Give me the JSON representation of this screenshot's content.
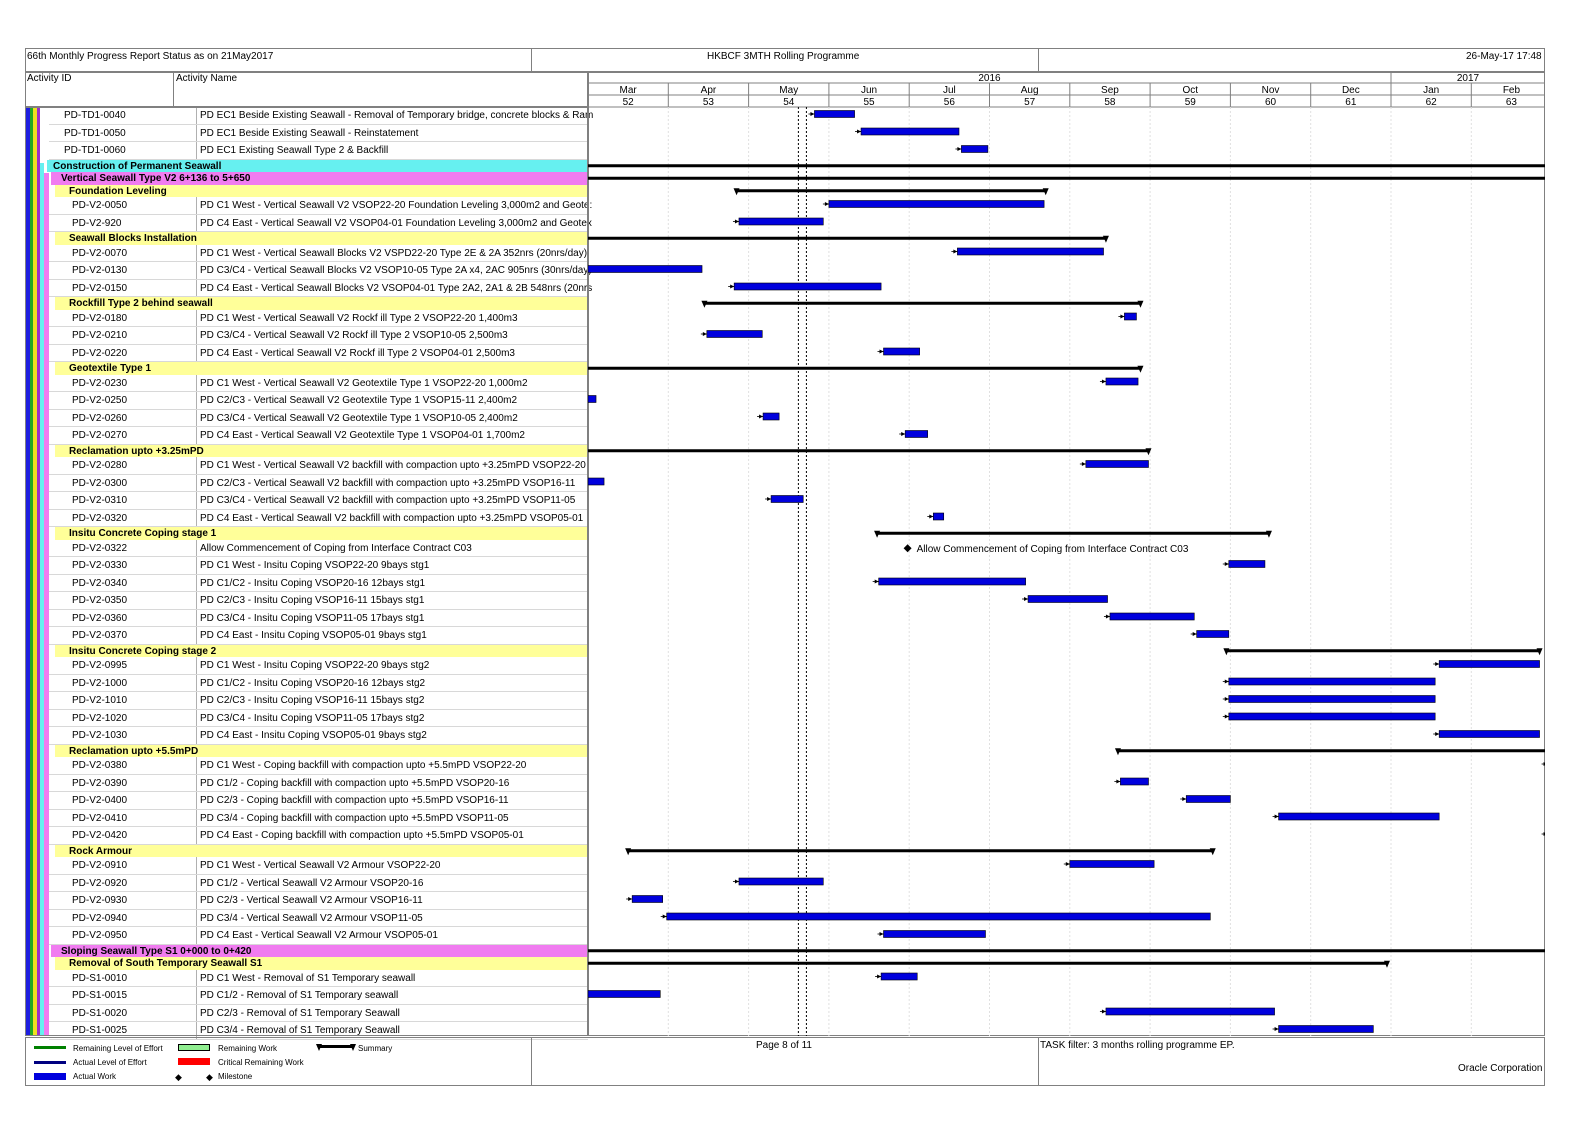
{
  "header": {
    "left": "66th Monthly Progress Report Status as on 21May2017",
    "center": "HKBCF 3MTH Rolling Programme",
    "right": "26-May-17 17:48"
  },
  "columns": {
    "activity_id": "Activity ID",
    "activity_name": "Activity Name"
  },
  "timescale": {
    "years": [
      {
        "label": "2016",
        "start": 0,
        "end": 10
      },
      {
        "label": "2017",
        "start": 10,
        "end": 12
      }
    ],
    "months": [
      "Mar",
      "Apr",
      "May",
      "Jun",
      "Jul",
      "Aug",
      "Sep",
      "Oct",
      "Nov",
      "Dec",
      "Jan",
      "Feb"
    ],
    "weeks": [
      "52",
      "53",
      "54",
      "55",
      "56",
      "57",
      "58",
      "59",
      "60",
      "61",
      "62",
      "63"
    ]
  },
  "colors": {
    "bar": "#0000dd",
    "summary": "#000000",
    "wbs_cyan": "#66f0f0",
    "wbs_magenta": "#f07cf0",
    "wbs_yellow": "#ffff99",
    "legend_remaining_loe": "#008000",
    "legend_actual_loe": "#000080",
    "legend_actual_work": "#0000dd",
    "legend_remaining_work": "#90ee90",
    "legend_critical": "#ff0000"
  },
  "chart_data": {
    "type": "gantt",
    "unit": "months from 1-Mar-2016",
    "data_date": 2.72,
    "rows": [
      {
        "kind": "act",
        "id": "PD-TD1-0040",
        "name": "PD EC1 Beside Existing Seawall - Removal of Temporary bridge, concrete blocks & Ram",
        "start": 2.82,
        "finish": 3.32
      },
      {
        "kind": "act",
        "id": "PD-TD1-0050",
        "name": "PD EC1 Beside Existing Seawall - Reinstatement",
        "start": 3.4,
        "finish": 4.62
      },
      {
        "kind": "act",
        "id": "PD-TD1-0060",
        "name": "PD EC1 Existing Seawall Type 2 & Backfill",
        "start": 4.65,
        "finish": 4.98
      },
      {
        "kind": "wbs",
        "level": 1,
        "name": "Construction of Permanent Seawall",
        "start": 0,
        "finish": 12
      },
      {
        "kind": "wbs",
        "level": 2,
        "name": "Vertical Seawall Type V2 6+136 to 5+650",
        "start": 0,
        "finish": 12
      },
      {
        "kind": "wbs",
        "level": 3,
        "name": "Foundation Leveling",
        "start": 1.85,
        "finish": 5.7
      },
      {
        "kind": "act",
        "id": "PD-V2-0050",
        "name": "PD C1 West - Vertical Seawall V2 VSOP22-20 Foundation Leveling 3,000m2 and Geote:",
        "start": 3.0,
        "finish": 5.68
      },
      {
        "kind": "act",
        "id": "PD-V2-920",
        "name": "PD C4 East - Vertical Seawall V2 VSOP04-01 Foundation Leveling 3,000m2 and Geotex",
        "start": 1.88,
        "finish": 2.93
      },
      {
        "kind": "wbs",
        "level": 3,
        "name": "Seawall Blocks Installation",
        "start": 0,
        "finish": 6.45
      },
      {
        "kind": "act",
        "id": "PD-V2-0070",
        "name": "PD C1 West - Vertical Seawall Blocks V2 VSPD22-20 Type 2E & 2A 352nrs (20nrs/day)",
        "start": 4.6,
        "finish": 6.42
      },
      {
        "kind": "act",
        "id": "PD-V2-0130",
        "name": "PD C3/C4 - Vertical Seawall Blocks V2 VSOP10-05 Type 2A x4, 2AC 905nrs (30nrs/day)",
        "start": 0,
        "finish": 1.42
      },
      {
        "kind": "act",
        "id": "PD-V2-0150",
        "name": "PD C4 East - Vertical Seawall Blocks V2 VSOP04-01 Type 2A2, 2A1 & 2B 548nrs (20nrs",
        "start": 1.82,
        "finish": 3.65
      },
      {
        "kind": "wbs",
        "level": 3,
        "name": "Rockfill Type 2 behind seawall",
        "start": 1.45,
        "finish": 6.88
      },
      {
        "kind": "act",
        "id": "PD-V2-0180",
        "name": "PD C1 West - Vertical Seawall V2 Rockf ill Type 2 VSOP22-20 1,400m3",
        "start": 6.68,
        "finish": 6.83
      },
      {
        "kind": "act",
        "id": "PD-V2-0210",
        "name": "PD C3/C4 - Vertical Seawall V2 Rockf ill Type 2 VSOP10-05 2,500m3",
        "start": 1.48,
        "finish": 2.17
      },
      {
        "kind": "act",
        "id": "PD-V2-0220",
        "name": "PD C4 East - Vertical Seawall V2 Rockf ill Type 2 VSOP04-01 2,500m3",
        "start": 3.68,
        "finish": 4.13
      },
      {
        "kind": "wbs",
        "level": 3,
        "name": "Geotextile Type 1",
        "start": 0,
        "finish": 6.88
      },
      {
        "kind": "act",
        "id": "PD-V2-0230",
        "name": "PD C1 West - Vertical Seawall V2 Geotextile Type 1 VSOP22-20 1,000m2",
        "start": 6.45,
        "finish": 6.85
      },
      {
        "kind": "act",
        "id": "PD-V2-0250",
        "name": "PD C2/C3 - Vertical Seawall V2 Geotextile Type 1 VSOP15-11 2,400m2",
        "start": 0,
        "finish": 0.1
      },
      {
        "kind": "act",
        "id": "PD-V2-0260",
        "name": "PD C3/C4 - Vertical Seawall V2 Geotextile Type 1 VSOP10-05 2,400m2",
        "start": 2.18,
        "finish": 2.38
      },
      {
        "kind": "act",
        "id": "PD-V2-0270",
        "name": "PD C4 East - Vertical Seawall V2 Geotextile Type 1 VSOP04-01 1,700m2",
        "start": 3.95,
        "finish": 4.23
      },
      {
        "kind": "wbs",
        "level": 3,
        "name": "Reclamation upto +3.25mPD",
        "start": 0,
        "finish": 6.98
      },
      {
        "kind": "act",
        "id": "PD-V2-0280",
        "name": "PD C1 West - Vertical Seawall V2 backfill with compaction upto +3.25mPD VSOP22-20",
        "start": 6.2,
        "finish": 6.98
      },
      {
        "kind": "act",
        "id": "PD-V2-0300",
        "name": "PD C2/C3 - Vertical Seawall V2 backfill with compaction upto +3.25mPD VSOP16-11",
        "start": 0,
        "finish": 0.2
      },
      {
        "kind": "act",
        "id": "PD-V2-0310",
        "name": "PD C3/C4 - Vertical Seawall V2 backfill with compaction upto +3.25mPD VSOP11-05",
        "start": 2.28,
        "finish": 2.68
      },
      {
        "kind": "act",
        "id": "PD-V2-0320",
        "name": "PD C4 East - Vertical Seawall V2 backfill with compaction upto +3.25mPD VSOP05-01",
        "start": 4.3,
        "finish": 4.43
      },
      {
        "kind": "wbs",
        "level": 3,
        "name": "Insitu Concrete Coping stage 1",
        "start": 3.6,
        "finish": 8.48
      },
      {
        "kind": "act",
        "id": "PD-V2-0322",
        "name": "Allow Commencement of Coping from Interface Contract C03",
        "milestone": 3.98,
        "label": "Allow Commencement of Coping from Interface Contract C03"
      },
      {
        "kind": "act",
        "id": "PD-V2-0330",
        "name": "PD C1 West - Insitu Coping VSOP22-20 9bays stg1",
        "start": 7.98,
        "finish": 8.43
      },
      {
        "kind": "act",
        "id": "PD-V2-0340",
        "name": "PD C1/C2 - Insitu Coping VSOP20-16 12bays stg1",
        "start": 3.62,
        "finish": 5.45
      },
      {
        "kind": "act",
        "id": "PD-V2-0350",
        "name": "PD C2/C3 - Insitu Coping VSOP16-11 15bays stg1",
        "start": 5.48,
        "finish": 6.47
      },
      {
        "kind": "act",
        "id": "PD-V2-0360",
        "name": "PD C3/C4 - Insitu Coping VSOP11-05 17bays stg1",
        "start": 6.5,
        "finish": 7.55
      },
      {
        "kind": "act",
        "id": "PD-V2-0370",
        "name": "PD C4 East - Insitu Coping VSOP05-01 9bays stg1",
        "start": 7.58,
        "finish": 7.98
      },
      {
        "kind": "wbs",
        "level": 3,
        "name": "Insitu Concrete Coping stage 2",
        "start": 7.95,
        "finish": 11.85
      },
      {
        "kind": "act",
        "id": "PD-V2-0995",
        "name": "PD C1 West - Insitu Coping VSOP22-20 9bays stg2",
        "start": 10.6,
        "finish": 11.85
      },
      {
        "kind": "act",
        "id": "PD-V2-1000",
        "name": "PD C1/C2 - Insitu Coping VSOP20-16 12bays stg2",
        "start": 7.98,
        "finish": 10.55
      },
      {
        "kind": "act",
        "id": "PD-V2-1010",
        "name": "PD C2/C3 - Insitu Coping VSOP16-11 15bays stg2",
        "start": 7.98,
        "finish": 10.55
      },
      {
        "kind": "act",
        "id": "PD-V2-1020",
        "name": "PD C3/C4 - Insitu Coping VSOP11-05 17bays stg2",
        "start": 7.98,
        "finish": 10.55
      },
      {
        "kind": "act",
        "id": "PD-V2-1030",
        "name": "PD C4 East - Insitu Coping VSOP05-01 9bays stg2",
        "start": 10.6,
        "finish": 11.85
      },
      {
        "kind": "wbs",
        "level": 3,
        "name": "Reclamation upto +5.5mPD",
        "start": 6.6,
        "finish": 12
      },
      {
        "kind": "act",
        "id": "PD-V2-0380",
        "name": "PD C1 West - Coping backfill with compaction upto +5.5mPD VSOP22-20",
        "start": 11.95,
        "finish": 12
      },
      {
        "kind": "act",
        "id": "PD-V2-0390",
        "name": "PD C1/2 - Coping backfill with compaction upto +5.5mPD VSOP20-16",
        "start": 6.63,
        "finish": 6.98
      },
      {
        "kind": "act",
        "id": "PD-V2-0400",
        "name": "PD C2/3 - Coping backfill with compaction upto +5.5mPD VSOP16-11",
        "start": 7.45,
        "finish": 8.0
      },
      {
        "kind": "act",
        "id": "PD-V2-0410",
        "name": "PD C3/4 - Coping backfill with compaction upto +5.5mPD VSOP11-05",
        "start": 8.6,
        "finish": 10.6
      },
      {
        "kind": "act",
        "id": "PD-V2-0420",
        "name": "PD C4 East - Coping backfill with compaction upto +5.5mPD VSOP05-01",
        "start": 11.95,
        "finish": 12
      },
      {
        "kind": "wbs",
        "level": 3,
        "name": "Rock Armour",
        "start": 0.5,
        "finish": 7.78
      },
      {
        "kind": "act",
        "id": "PD-V2-0910",
        "name": "PD C1 West - Vertical Seawall V2 Armour VSOP22-20",
        "start": 6.0,
        "finish": 7.05
      },
      {
        "kind": "act",
        "id": "PD-V2-0920",
        "name": "PD C1/2 - Vertical Seawall V2 Armour VSOP20-16",
        "start": 1.88,
        "finish": 2.93
      },
      {
        "kind": "act",
        "id": "PD-V2-0930",
        "name": "PD C2/3 - Vertical Seawall V2 Armour VSOP16-11",
        "start": 0.55,
        "finish": 0.93
      },
      {
        "kind": "act",
        "id": "PD-V2-0940",
        "name": "PD C3/4 - Vertical Seawall V2 Armour VSOP11-05",
        "start": 0.98,
        "finish": 7.75
      },
      {
        "kind": "act",
        "id": "PD-V2-0950",
        "name": "PD C4 East - Vertical Seawall V2 Armour VSOP05-01",
        "start": 3.68,
        "finish": 4.95
      },
      {
        "kind": "wbs",
        "level": 2,
        "name": "Sloping Seawall Type S1 0+000 to 0+420",
        "start": 0,
        "finish": 12
      },
      {
        "kind": "wbs",
        "level": 3,
        "name": "Removal of South Temporary Seawall S1",
        "start": 0,
        "finish": 9.95
      },
      {
        "kind": "act",
        "id": "PD-S1-0010",
        "name": "PD C1 West  - Removal of S1 Temporary seawall",
        "start": 3.65,
        "finish": 4.1
      },
      {
        "kind": "act",
        "id": "PD-S1-0015",
        "name": "PD C1/2 - Removal of S1 Temporary seawall",
        "start": 0,
        "finish": 0.9
      },
      {
        "kind": "act",
        "id": "PD-S1-0020",
        "name": "PD C2/3 - Removal of S1 Temporary Seawall",
        "start": 6.45,
        "finish": 8.55
      },
      {
        "kind": "act",
        "id": "PD-S1-0025",
        "name": "PD C3/4 - Removal of S1 Temporary Seawall",
        "start": 8.6,
        "finish": 9.78
      }
    ]
  },
  "footer": {
    "legend": {
      "remaining_loe": "Remaining Level of Effort",
      "actual_loe": "Actual Level of Effort",
      "actual_work": "Actual Work",
      "remaining_work": "Remaining Work",
      "critical_remaining": "Critical Remaining Work",
      "milestone": "Milestone",
      "summary": "Summary"
    },
    "page": "Page 8 of 11",
    "filter": "TASK filter: 3 months rolling programme EP.",
    "company": "Oracle Corporation"
  }
}
